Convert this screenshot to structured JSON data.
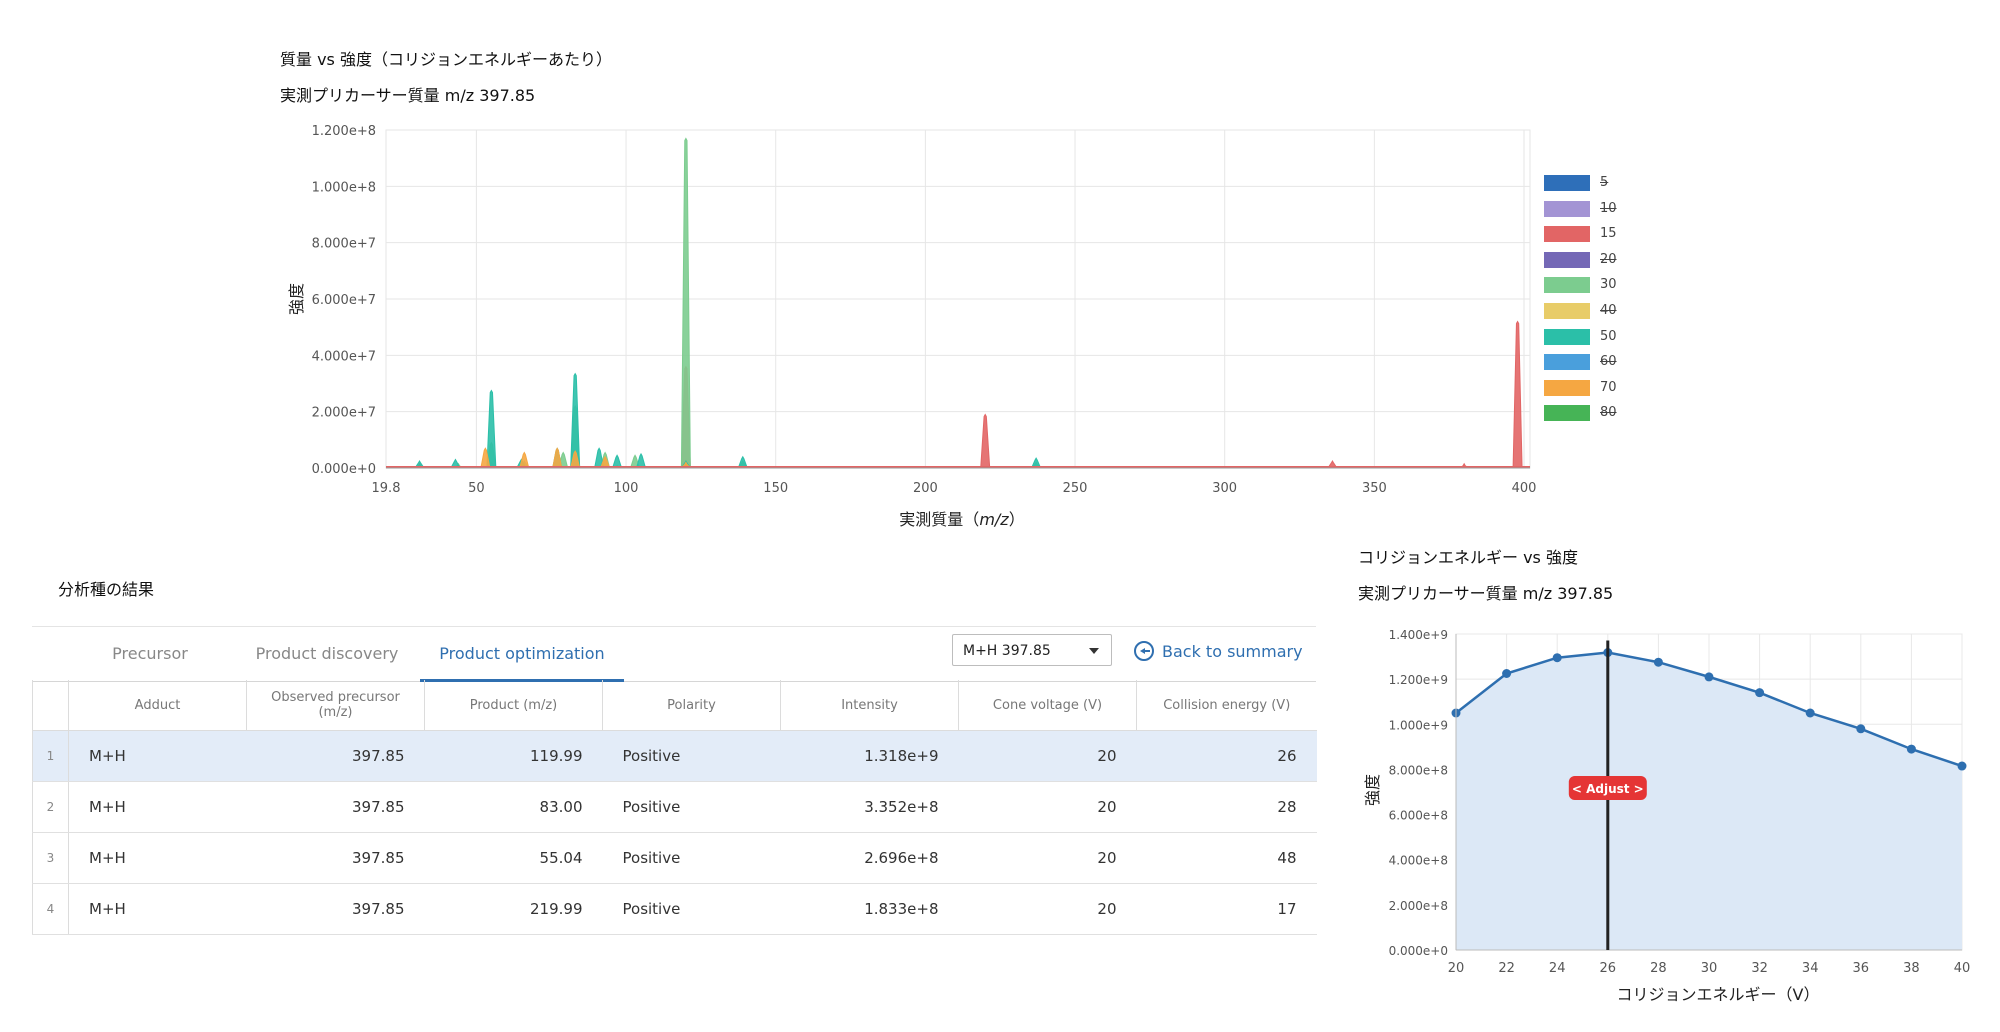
{
  "spectrum": {
    "title": "質量 vs 強度（コリジョンエネルギーあたり）",
    "subtitle": "実測プリカーサー質量 m/z 397.85",
    "xlabel_prefix": "実測質量（",
    "xlabel_var": "m/z",
    "xlabel_suffix": "）",
    "ylabel": "強度",
    "x_ticks": [
      "19.8",
      "50",
      "100",
      "150",
      "200",
      "250",
      "300",
      "350",
      "400"
    ],
    "y_ticks": [
      "0.000e+0",
      "2.000e+7",
      "4.000e+7",
      "6.000e+7",
      "8.000e+7",
      "1.000e+8",
      "1.200e+8"
    ],
    "legend": [
      {
        "label": "5",
        "color": "#2e6fb9",
        "enabled": false
      },
      {
        "label": "10",
        "color": "#a394d4",
        "enabled": false
      },
      {
        "label": "15",
        "color": "#e26565",
        "enabled": true
      },
      {
        "label": "20",
        "color": "#7468b6",
        "enabled": false
      },
      {
        "label": "30",
        "color": "#7ccc8f",
        "enabled": true
      },
      {
        "label": "40",
        "color": "#e8cc68",
        "enabled": false
      },
      {
        "label": "50",
        "color": "#2bbfa8",
        "enabled": true
      },
      {
        "label": "60",
        "color": "#4a9fdc",
        "enabled": false
      },
      {
        "label": "70",
        "color": "#f5a742",
        "enabled": true
      },
      {
        "label": "80",
        "color": "#46b456",
        "enabled": false
      }
    ]
  },
  "chart_data": [
    {
      "type": "area",
      "title": "質量 vs 強度（コリジョンエネルギーあたり）",
      "subtitle": "実測プリカーサー質量 m/z 397.85",
      "xlabel": "実測質量（m/z）",
      "ylabel": "強度",
      "xlim": [
        19.8,
        402
      ],
      "ylim": [
        0,
        120000000
      ],
      "grid": true,
      "legend_position": "right",
      "series": [
        {
          "name": "15",
          "color": "#e26565",
          "peaks": [
            [
              31,
              1500000
            ],
            [
              55,
              2000000
            ],
            [
              66,
              1200000
            ],
            [
              83,
              2500000
            ],
            [
              97,
              800000
            ],
            [
              119.99,
              36000000
            ],
            [
              139,
              700000
            ],
            [
              219.99,
              19000000
            ],
            [
              336,
              2500000
            ],
            [
              380,
              1500000
            ],
            [
              397.85,
              52000000
            ]
          ]
        },
        {
          "name": "30",
          "color": "#7ccc8f",
          "peaks": [
            [
              44,
              1500000
            ],
            [
              55,
              9000000
            ],
            [
              66,
              2500000
            ],
            [
              79,
              5500000
            ],
            [
              83,
              22000000
            ],
            [
              93,
              5500000
            ],
            [
              103,
              4500000
            ],
            [
              119.99,
              117000000
            ],
            [
              139,
              2500000
            ],
            [
              237,
              2000000
            ]
          ]
        },
        {
          "name": "50",
          "color": "#2bbfa8",
          "peaks": [
            [
              31,
              2500000
            ],
            [
              43,
              3000000
            ],
            [
              55,
              27500000
            ],
            [
              65,
              3000000
            ],
            [
              77,
              7000000
            ],
            [
              83,
              33500000
            ],
            [
              91,
              7000000
            ],
            [
              97,
              4500000
            ],
            [
              105,
              5000000
            ],
            [
              119.99,
              2500000
            ],
            [
              139,
              4000000
            ],
            [
              237,
              3500000
            ]
          ]
        },
        {
          "name": "70",
          "color": "#f5a742",
          "peaks": [
            [
              53,
              7000000
            ],
            [
              66,
              5500000
            ],
            [
              77,
              7000000
            ],
            [
              83,
              6000000
            ],
            [
              93,
              4000000
            ],
            [
              119.99,
              2000000
            ]
          ]
        }
      ]
    },
    {
      "type": "line",
      "title": "コリジョンエネルギー vs 強度",
      "subtitle": "実測プリカーサー質量 m/z 397.85",
      "xlabel": "コリジョンエネルギー（V）",
      "ylabel": "強度",
      "xlim": [
        20,
        40
      ],
      "ylim": [
        0,
        1400000000
      ],
      "x": [
        20,
        22,
        24,
        26,
        28,
        30,
        32,
        34,
        36,
        38,
        40
      ],
      "values": [
        1050000000,
        1225000000,
        1295000000,
        1318000000,
        1275000000,
        1210000000,
        1140000000,
        1050000000,
        980000000,
        890000000,
        815000000
      ],
      "marker_x": 26,
      "grid": true
    }
  ],
  "ce_chart": {
    "title": "コリジョンエネルギー vs 強度",
    "subtitle": "実測プリカーサー質量 m/z 397.85",
    "xlabel": "コリジョンエネルギー（V）",
    "ylabel": "強度",
    "x_ticks": [
      "20",
      "22",
      "24",
      "26",
      "28",
      "30",
      "32",
      "34",
      "36",
      "38",
      "40"
    ],
    "y_ticks": [
      "0.000e+0",
      "2.000e+8",
      "4.000e+8",
      "6.000e+8",
      "8.000e+8",
      "1.000e+9",
      "1.200e+9",
      "1.400e+9"
    ],
    "adjust_label": "< Adjust >",
    "line_color": "#2e6fb0",
    "fill_color": "#dce8f6"
  },
  "results": {
    "title": "分析種の結果",
    "tabs": [
      {
        "label": "Precursor",
        "active": false
      },
      {
        "label": "Product discovery",
        "active": false
      },
      {
        "label": "Product optimization",
        "active": true
      }
    ],
    "adduct_select_value": "M+H 397.85",
    "back_label": "Back to summary",
    "columns": [
      "",
      "Adduct",
      "Observed precursor (m/z)",
      "Product (m/z)",
      "Polarity",
      "Intensity",
      "Cone voltage (V)",
      "Collision energy (V)"
    ],
    "rows": [
      {
        "idx": "1",
        "adduct": "M+H",
        "precursor": "397.85",
        "product": "119.99",
        "polarity": "Positive",
        "intensity": "1.318e+9",
        "cone": "20",
        "ce": "26",
        "selected": true
      },
      {
        "idx": "2",
        "adduct": "M+H",
        "precursor": "397.85",
        "product": "83.00",
        "polarity": "Positive",
        "intensity": "3.352e+8",
        "cone": "20",
        "ce": "28",
        "selected": false
      },
      {
        "idx": "3",
        "adduct": "M+H",
        "precursor": "397.85",
        "product": "55.04",
        "polarity": "Positive",
        "intensity": "2.696e+8",
        "cone": "20",
        "ce": "48",
        "selected": false
      },
      {
        "idx": "4",
        "adduct": "M+H",
        "precursor": "397.85",
        "product": "219.99",
        "polarity": "Positive",
        "intensity": "1.833e+8",
        "cone": "20",
        "ce": "17",
        "selected": false
      }
    ]
  }
}
